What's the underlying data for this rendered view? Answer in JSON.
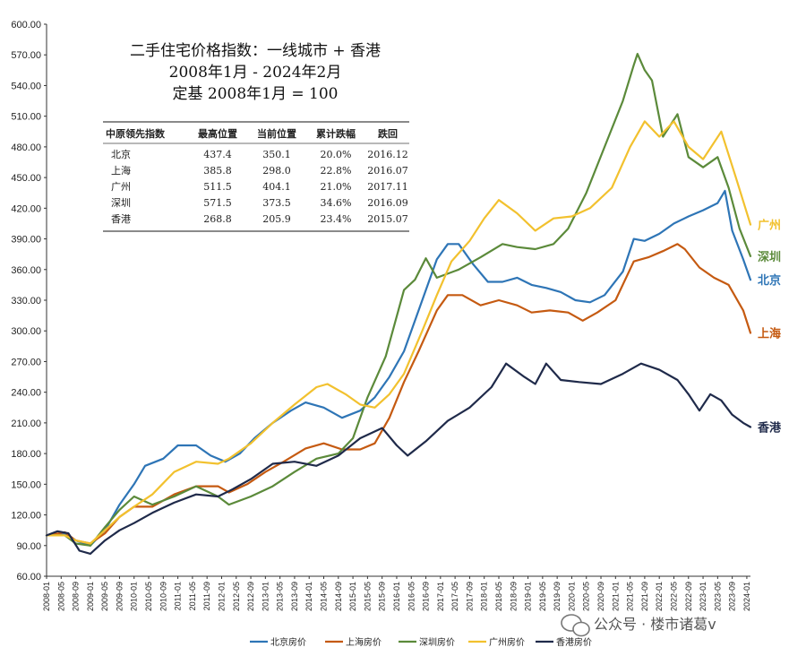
{
  "chart_data": {
    "type": "line",
    "title": "二手住宅价格指数：一线城市 + 香港",
    "subtitle": "2008年1月 - 2024年2月",
    "subtitle2": "定基 2008年1月 = 100",
    "ylim": [
      60,
      600
    ],
    "yticks": [
      "60.00",
      "90.00",
      "120.00",
      "150.00",
      "180.00",
      "210.00",
      "240.00",
      "270.00",
      "300.00",
      "330.00",
      "360.00",
      "390.00",
      "420.00",
      "450.00",
      "480.00",
      "510.00",
      "540.00",
      "570.00",
      "600.00"
    ],
    "xticks": [
      "2008-01",
      "2008-05",
      "2008-09",
      "2009-01",
      "2009-05",
      "2009-09",
      "2010-01",
      "2010-05",
      "2010-09",
      "2011-01",
      "2011-05",
      "2011-09",
      "2012-01",
      "2012-05",
      "2012-09",
      "2013-01",
      "2013-05",
      "2013-09",
      "2014-01",
      "2014-05",
      "2014-09",
      "2015-01",
      "2015-05",
      "2015-09",
      "2016-01",
      "2016-05",
      "2016-09",
      "2017-01",
      "2017-05",
      "2017-09",
      "2018-01",
      "2018-05",
      "2018-09",
      "2019-01",
      "2019-05",
      "2019-09",
      "2020-01",
      "2020-05",
      "2020-09",
      "2021-01",
      "2021-05",
      "2021-09",
      "2022-01",
      "2022-05",
      "2022-09",
      "2023-01",
      "2023-05",
      "2023-09",
      "2024-01"
    ],
    "x_start": "2008-01",
    "x_end": "2024-02",
    "series": [
      {
        "name": "北京房价",
        "label": "北京",
        "color": "#2e75b6",
        "points": [
          [
            "2008-01",
            100
          ],
          [
            "2008-06",
            102
          ],
          [
            "2008-09",
            95
          ],
          [
            "2009-01",
            90
          ],
          [
            "2009-05",
            105
          ],
          [
            "2009-09",
            130
          ],
          [
            "2010-01",
            150
          ],
          [
            "2010-04",
            168
          ],
          [
            "2010-09",
            175
          ],
          [
            "2011-01",
            188
          ],
          [
            "2011-06",
            188
          ],
          [
            "2011-10",
            178
          ],
          [
            "2012-02",
            172
          ],
          [
            "2012-06",
            180
          ],
          [
            "2012-10",
            195
          ],
          [
            "2013-03",
            210
          ],
          [
            "2013-08",
            222
          ],
          [
            "2013-12",
            230
          ],
          [
            "2014-05",
            225
          ],
          [
            "2014-10",
            215
          ],
          [
            "2015-03",
            222
          ],
          [
            "2015-07",
            235
          ],
          [
            "2015-11",
            255
          ],
          [
            "2016-03",
            280
          ],
          [
            "2016-08",
            330
          ],
          [
            "2016-12",
            370
          ],
          [
            "2017-03",
            385
          ],
          [
            "2017-06",
            385
          ],
          [
            "2017-10",
            365
          ],
          [
            "2018-02",
            348
          ],
          [
            "2018-06",
            348
          ],
          [
            "2018-10",
            352
          ],
          [
            "2019-02",
            345
          ],
          [
            "2019-06",
            342
          ],
          [
            "2019-10",
            338
          ],
          [
            "2020-02",
            330
          ],
          [
            "2020-06",
            328
          ],
          [
            "2020-10",
            335
          ],
          [
            "2021-03",
            358
          ],
          [
            "2021-06",
            390
          ],
          [
            "2021-09",
            388
          ],
          [
            "2022-01",
            395
          ],
          [
            "2022-05",
            405
          ],
          [
            "2022-09",
            412
          ],
          [
            "2023-01",
            418
          ],
          [
            "2023-05",
            425
          ],
          [
            "2023-07",
            437
          ],
          [
            "2023-09",
            398
          ],
          [
            "2023-12",
            370
          ],
          [
            "2024-02",
            350
          ]
        ]
      },
      {
        "name": "上海房价",
        "label": "上海",
        "color": "#c55a11",
        "points": [
          [
            "2008-01",
            100
          ],
          [
            "2008-06",
            103
          ],
          [
            "2008-09",
            95
          ],
          [
            "2009-01",
            92
          ],
          [
            "2009-05",
            102
          ],
          [
            "2009-09",
            118
          ],
          [
            "2010-01",
            128
          ],
          [
            "2010-06",
            128
          ],
          [
            "2010-12",
            140
          ],
          [
            "2011-06",
            148
          ],
          [
            "2011-12",
            148
          ],
          [
            "2012-03",
            142
          ],
          [
            "2012-08",
            150
          ],
          [
            "2013-01",
            162
          ],
          [
            "2013-06",
            172
          ],
          [
            "2013-12",
            185
          ],
          [
            "2014-05",
            190
          ],
          [
            "2014-10",
            184
          ],
          [
            "2015-03",
            184
          ],
          [
            "2015-07",
            190
          ],
          [
            "2015-11",
            215
          ],
          [
            "2016-03",
            250
          ],
          [
            "2016-07",
            280
          ],
          [
            "2016-12",
            320
          ],
          [
            "2017-03",
            335
          ],
          [
            "2017-07",
            335
          ],
          [
            "2017-12",
            325
          ],
          [
            "2018-05",
            330
          ],
          [
            "2018-10",
            325
          ],
          [
            "2019-02",
            318
          ],
          [
            "2019-07",
            320
          ],
          [
            "2019-12",
            318
          ],
          [
            "2020-04",
            310
          ],
          [
            "2020-08",
            318
          ],
          [
            "2021-01",
            330
          ],
          [
            "2021-06",
            368
          ],
          [
            "2021-10",
            372
          ],
          [
            "2022-02",
            378
          ],
          [
            "2022-06",
            385
          ],
          [
            "2022-08",
            380
          ],
          [
            "2022-12",
            362
          ],
          [
            "2023-04",
            352
          ],
          [
            "2023-08",
            345
          ],
          [
            "2023-12",
            320
          ],
          [
            "2024-02",
            298
          ]
        ]
      },
      {
        "name": "深圳房价",
        "label": "深圳",
        "color": "#5b8a3a",
        "points": [
          [
            "2008-01",
            100
          ],
          [
            "2008-06",
            100
          ],
          [
            "2008-09",
            92
          ],
          [
            "2009-01",
            90
          ],
          [
            "2009-05",
            108
          ],
          [
            "2009-09",
            125
          ],
          [
            "2010-01",
            138
          ],
          [
            "2010-06",
            130
          ],
          [
            "2010-12",
            138
          ],
          [
            "2011-06",
            148
          ],
          [
            "2011-12",
            138
          ],
          [
            "2012-03",
            130
          ],
          [
            "2012-09",
            138
          ],
          [
            "2013-03",
            148
          ],
          [
            "2013-09",
            162
          ],
          [
            "2014-03",
            175
          ],
          [
            "2014-09",
            180
          ],
          [
            "2015-01",
            195
          ],
          [
            "2015-05",
            235
          ],
          [
            "2015-10",
            275
          ],
          [
            "2016-03",
            340
          ],
          [
            "2016-06",
            350
          ],
          [
            "2016-09",
            371
          ],
          [
            "2016-12",
            352
          ],
          [
            "2017-06",
            360
          ],
          [
            "2017-12",
            372
          ],
          [
            "2018-06",
            385
          ],
          [
            "2018-10",
            382
          ],
          [
            "2019-03",
            380
          ],
          [
            "2019-08",
            385
          ],
          [
            "2019-12",
            400
          ],
          [
            "2020-05",
            435
          ],
          [
            "2020-10",
            480
          ],
          [
            "2021-03",
            525
          ],
          [
            "2021-06",
            560
          ],
          [
            "2021-07",
            571
          ],
          [
            "2021-09",
            555
          ],
          [
            "2021-11",
            545
          ],
          [
            "2022-02",
            490
          ],
          [
            "2022-06",
            512
          ],
          [
            "2022-09",
            470
          ],
          [
            "2023-01",
            460
          ],
          [
            "2023-05",
            470
          ],
          [
            "2023-08",
            440
          ],
          [
            "2023-11",
            400
          ],
          [
            "2024-02",
            373
          ]
        ]
      },
      {
        "name": "广州房价",
        "label": "广州",
        "color": "#f2c12e",
        "points": [
          [
            "2008-01",
            100
          ],
          [
            "2008-06",
            100
          ],
          [
            "2008-09",
            95
          ],
          [
            "2009-01",
            92
          ],
          [
            "2009-05",
            105
          ],
          [
            "2009-09",
            118
          ],
          [
            "2010-01",
            128
          ],
          [
            "2010-06",
            140
          ],
          [
            "2010-12",
            162
          ],
          [
            "2011-06",
            172
          ],
          [
            "2011-12",
            170
          ],
          [
            "2012-03",
            175
          ],
          [
            "2012-09",
            190
          ],
          [
            "2013-03",
            210
          ],
          [
            "2013-09",
            228
          ],
          [
            "2014-03",
            245
          ],
          [
            "2014-06",
            248
          ],
          [
            "2014-11",
            238
          ],
          [
            "2015-03",
            228
          ],
          [
            "2015-07",
            225
          ],
          [
            "2015-11",
            238
          ],
          [
            "2016-03",
            258
          ],
          [
            "2016-08",
            300
          ],
          [
            "2016-12",
            335
          ],
          [
            "2017-04",
            368
          ],
          [
            "2017-09",
            388
          ],
          [
            "2018-01",
            410
          ],
          [
            "2018-05",
            428
          ],
          [
            "2018-10",
            415
          ],
          [
            "2019-03",
            398
          ],
          [
            "2019-08",
            410
          ],
          [
            "2020-01",
            412
          ],
          [
            "2020-06",
            420
          ],
          [
            "2020-12",
            440
          ],
          [
            "2021-05",
            480
          ],
          [
            "2021-09",
            505
          ],
          [
            "2022-01",
            490
          ],
          [
            "2022-05",
            505
          ],
          [
            "2022-09",
            480
          ],
          [
            "2023-01",
            468
          ],
          [
            "2023-06",
            495
          ],
          [
            "2023-10",
            450
          ],
          [
            "2024-02",
            404
          ]
        ]
      },
      {
        "name": "香港房价",
        "label": "香港",
        "color": "#1f2a4a",
        "points": [
          [
            "2008-01",
            100
          ],
          [
            "2008-04",
            104
          ],
          [
            "2008-07",
            102
          ],
          [
            "2008-10",
            85
          ],
          [
            "2009-01",
            82
          ],
          [
            "2009-05",
            95
          ],
          [
            "2009-09",
            105
          ],
          [
            "2010-01",
            112
          ],
          [
            "2010-06",
            122
          ],
          [
            "2010-12",
            132
          ],
          [
            "2011-06",
            140
          ],
          [
            "2011-12",
            138
          ],
          [
            "2012-04",
            145
          ],
          [
            "2012-09",
            155
          ],
          [
            "2013-03",
            170
          ],
          [
            "2013-09",
            172
          ],
          [
            "2014-03",
            168
          ],
          [
            "2014-09",
            178
          ],
          [
            "2015-03",
            195
          ],
          [
            "2015-09",
            205
          ],
          [
            "2016-01",
            188
          ],
          [
            "2016-04",
            178
          ],
          [
            "2016-09",
            192
          ],
          [
            "2017-03",
            212
          ],
          [
            "2017-09",
            225
          ],
          [
            "2018-03",
            245
          ],
          [
            "2018-07",
            268
          ],
          [
            "2018-12",
            255
          ],
          [
            "2019-03",
            248
          ],
          [
            "2019-06",
            268
          ],
          [
            "2019-10",
            252
          ],
          [
            "2020-03",
            250
          ],
          [
            "2020-09",
            248
          ],
          [
            "2021-03",
            258
          ],
          [
            "2021-08",
            268
          ],
          [
            "2022-01",
            262
          ],
          [
            "2022-06",
            252
          ],
          [
            "2022-09",
            238
          ],
          [
            "2022-12",
            222
          ],
          [
            "2023-03",
            238
          ],
          [
            "2023-06",
            232
          ],
          [
            "2023-09",
            218
          ],
          [
            "2023-12",
            210
          ],
          [
            "2024-02",
            206
          ]
        ]
      }
    ],
    "table": {
      "headers": [
        "中原领先指数",
        "最高位置",
        "当前位置",
        "累计跌幅",
        "跌回"
      ],
      "rows": [
        [
          "北京",
          "437.4",
          "350.1",
          "20.0%",
          "2016.12"
        ],
        [
          "上海",
          "385.8",
          "298.0",
          "22.8%",
          "2016.07"
        ],
        [
          "广州",
          "511.5",
          "404.1",
          "21.0%",
          "2017.11"
        ],
        [
          "深圳",
          "571.5",
          "373.5",
          "34.6%",
          "2016.09"
        ],
        [
          "香港",
          "268.8",
          "205.9",
          "23.4%",
          "2015.07"
        ]
      ]
    },
    "grid": false,
    "legend_placement": "bottom"
  },
  "watermark": "公众号 · 楼市诸葛v"
}
